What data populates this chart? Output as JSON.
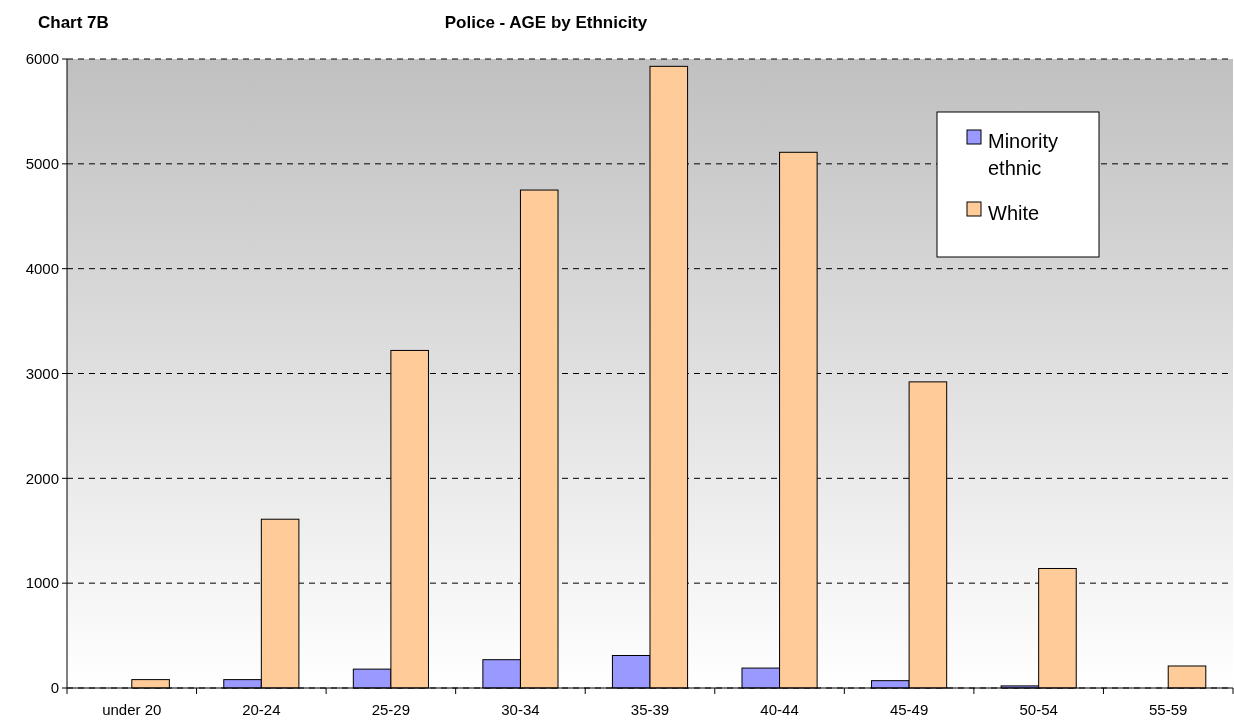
{
  "chart_data": {
    "type": "bar",
    "title": "Police - AGE by Ethnicity",
    "annotations": [
      "Chart 7B"
    ],
    "categories": [
      "under 20",
      "20-24",
      "25-29",
      "30-34",
      "35-39",
      "40-44",
      "45-49",
      "50-54",
      "55-59"
    ],
    "series": [
      {
        "name": "Minority ethnic",
        "color": "#9999ff",
        "values": [
          0,
          80,
          180,
          270,
          310,
          190,
          70,
          20,
          0
        ]
      },
      {
        "name": "White",
        "color": "#ffcc99",
        "values": [
          80,
          1610,
          3220,
          4750,
          5930,
          5110,
          2920,
          1140,
          210
        ]
      }
    ],
    "ylim": [
      0,
      6000
    ],
    "yticks": [
      0,
      1000,
      2000,
      3000,
      4000,
      5000,
      6000
    ],
    "grid": "y",
    "legend": "top right"
  }
}
